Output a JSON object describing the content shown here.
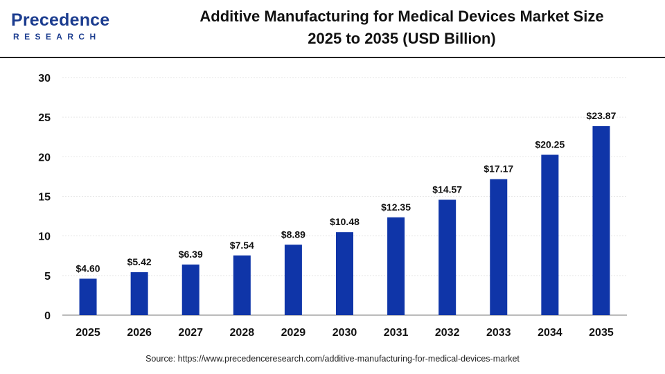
{
  "brand": {
    "logo_main": "Precedence",
    "logo_sub": "RESEARCH",
    "color": "#1b3c8f"
  },
  "title": {
    "line1": "Additive Manufacturing for Medical Devices Market Size",
    "line2": "2025 to 2035 (USD Billion)"
  },
  "source": "Source: https://www.precedenceresearch.com/additive-manufacturing-for-medical-devices-market",
  "chart_data": {
    "type": "bar",
    "categories": [
      "2025",
      "2026",
      "2027",
      "2028",
      "2029",
      "2030",
      "2031",
      "2032",
      "2033",
      "2034",
      "2035"
    ],
    "values": [
      4.6,
      5.42,
      6.39,
      7.54,
      8.89,
      10.48,
      12.35,
      14.57,
      17.17,
      20.25,
      23.87
    ],
    "data_labels": [
      "$4.60",
      "$5.42",
      "$6.39",
      "$7.54",
      "$8.89",
      "$10.48",
      "$12.35",
      "$14.57",
      "$17.17",
      "$20.25",
      "$23.87"
    ],
    "xlabel": "",
    "ylabel": "",
    "ylim": [
      0,
      30
    ],
    "yticks": [
      0,
      5,
      10,
      15,
      20,
      25,
      30
    ],
    "grid": true,
    "bar_color": "#0f35a8",
    "legend": "none"
  }
}
